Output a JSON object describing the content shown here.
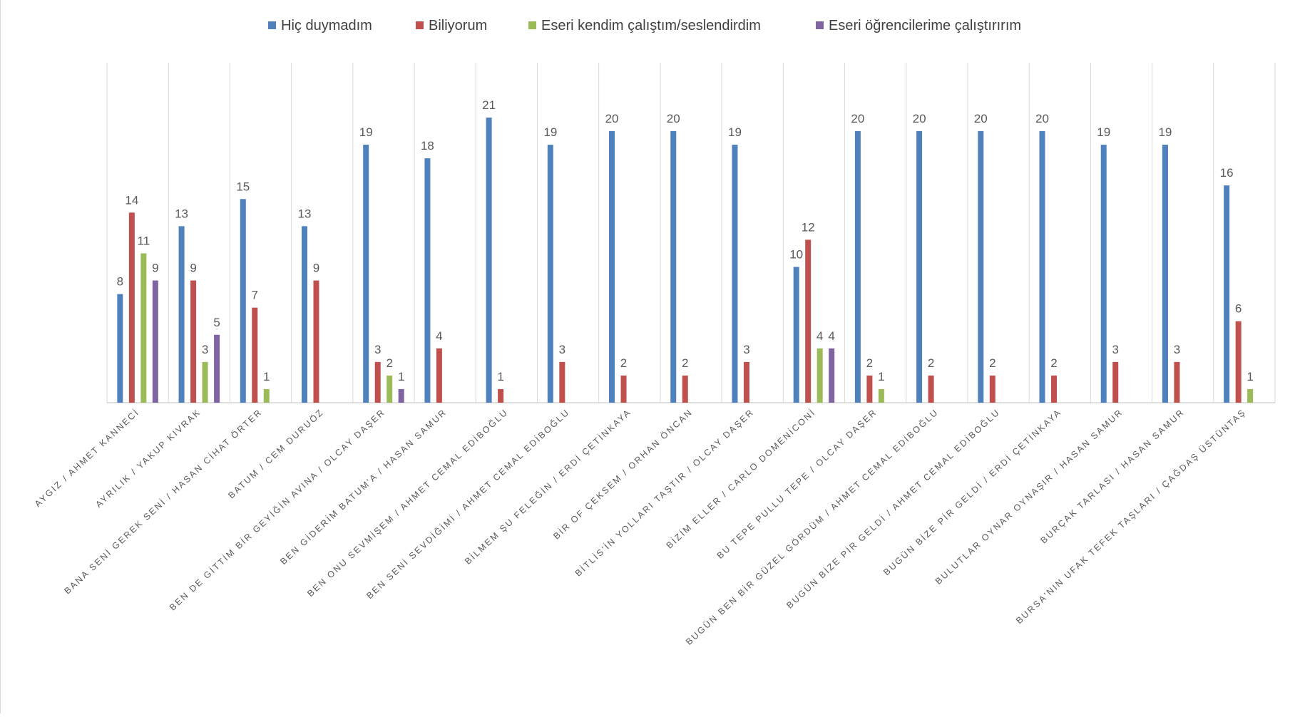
{
  "chart_data": {
    "type": "bar",
    "title": "",
    "xlabel": "",
    "ylabel": "",
    "ylim": [
      0,
      22
    ],
    "grid": "vertical category separators",
    "legend_position": "top",
    "series": [
      {
        "name": "Hiç duymadım",
        "color": "#4f81bd",
        "values": [
          8,
          13,
          15,
          13,
          19,
          18,
          21,
          19,
          20,
          20,
          19,
          10,
          20,
          20,
          20,
          20,
          19,
          19,
          16
        ]
      },
      {
        "name": "Biliyorum",
        "color": "#c0504d",
        "values": [
          14,
          9,
          7,
          9,
          3,
          4,
          1,
          3,
          2,
          2,
          3,
          12,
          2,
          2,
          2,
          2,
          3,
          3,
          6
        ]
      },
      {
        "name": "Eseri kendim çalıştım/seslendirdim",
        "color": "#9bbb59",
        "values": [
          11,
          3,
          1,
          null,
          2,
          null,
          null,
          null,
          null,
          null,
          null,
          4,
          1,
          null,
          null,
          null,
          null,
          null,
          1
        ]
      },
      {
        "name": "Eseri öğrencilerime çalıştırırım",
        "color": "#8064a2",
        "values": [
          9,
          5,
          null,
          null,
          1,
          null,
          null,
          null,
          null,
          null,
          null,
          4,
          null,
          null,
          null,
          null,
          null,
          null,
          null
        ]
      }
    ],
    "categories": [
      "AYGIZ / AHMET KANNECİ",
      "AYRILIK / YAKUP KIVRAK",
      "BANA SENİ GEREK SENİ / HASAN CİHAT ÖRTER",
      "BATUM / CEM DURUÖZ",
      "BEN DE GİTTİM BİR GEYİĞİN AVINA / OLCAY DAŞER",
      "BEN GİDERİM BATUM'A / HASAN SAMUR",
      "BEN ONU SEVMİŞEM / AHMET CEMAL EDİBOĞLU",
      "BEN SENİ SEVDİĞİMİ / AHMET CEMAL EDİBOĞLU",
      "BİLMEM ŞU FELEĞİN / ERDİ ÇETİNKAYA",
      "BİR OF ÇEKSEM / ORHAN ÖNCAN",
      "BİTLİS'İN YOLLARI TAŞTIR / OLCAY DAŞER",
      "BİZİM ELLER / CARLO DOMENİCONİ",
      "BU TEPE PULLU TEPE / OLCAY DAŞER",
      "BUGÜN BEN BİR GÜZEL GÖRDÜM / AHMET CEMAL EDİBOĞLU",
      "BUGÜN BİZE PİR GELDİ / AHMET CEMAL EDİBOĞLU",
      "BUGÜN BİZE PİR GELDİ / ERDİ ÇETİNKAYA",
      "BULUTLAR OYNAR OYNAŞIR / HASAN SAMUR",
      "BURÇAK TARLASI / HASAN SAMUR",
      "BURSA'NIN UFAK TEFEK TAŞLARI / ÇAĞDAŞ ÜSTÜNTAŞ"
    ]
  }
}
